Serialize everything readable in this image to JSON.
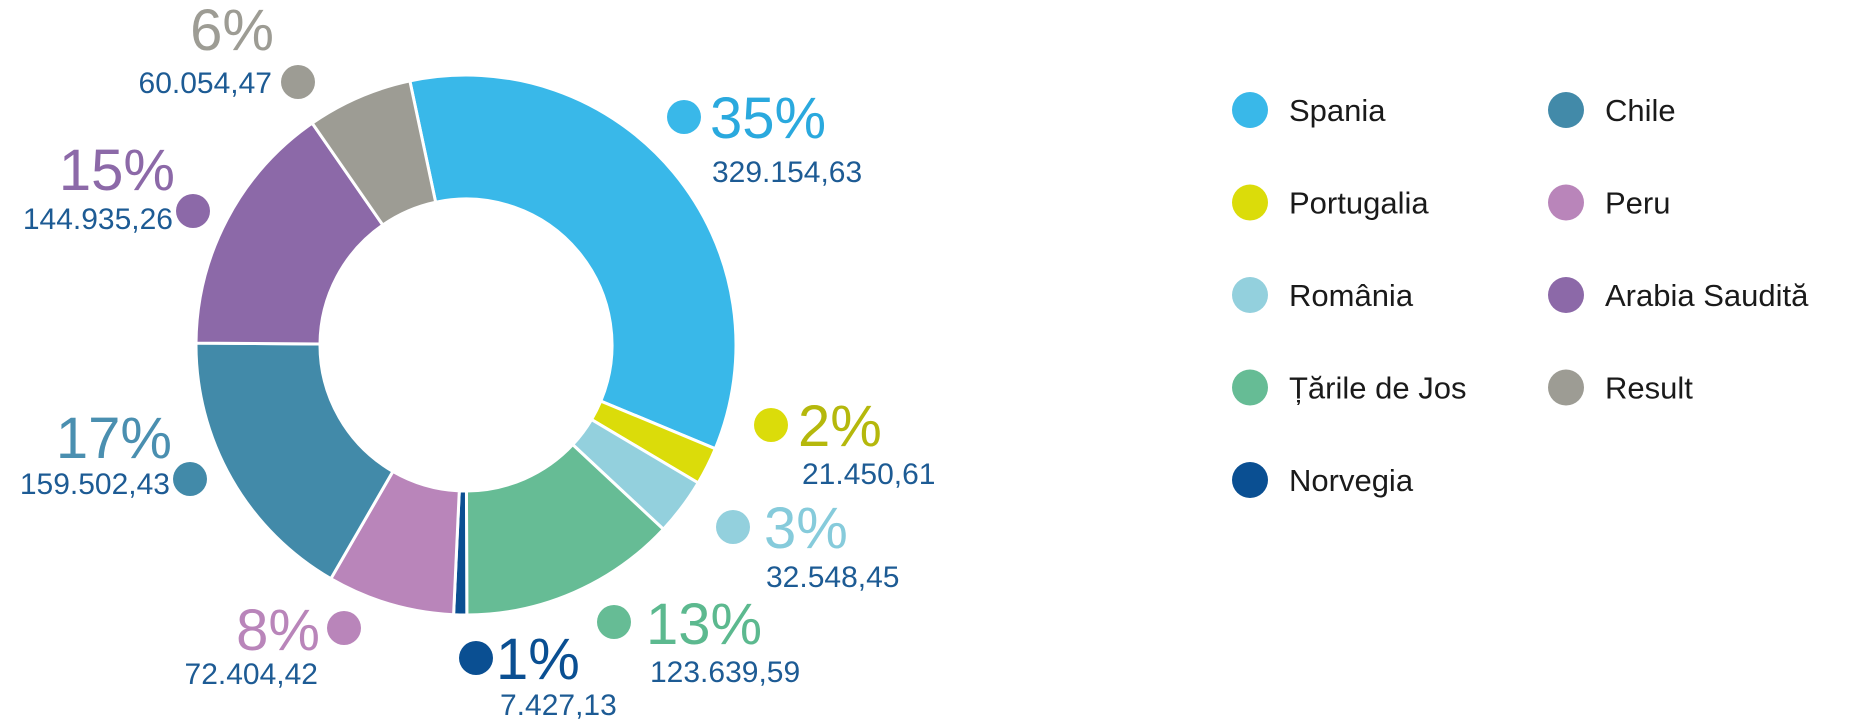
{
  "chart_data": {
    "type": "pie",
    "variant": "donut",
    "title": "",
    "value_color": "#1d5b94",
    "slices": [
      {
        "name": "Spania",
        "percent_label": "35%",
        "value_label": "329.154,63",
        "value": 329154.63,
        "color": "#39b8e9",
        "pct_color": "#2aa9de"
      },
      {
        "name": "Portugalia",
        "percent_label": "2%",
        "value_label": "21.450,61",
        "value": 21450.61,
        "color": "#dbdc0a",
        "pct_color": "#b5b80c"
      },
      {
        "name": "România",
        "percent_label": "3%",
        "value_label": "32.548,45",
        "value": 32548.45,
        "color": "#93d0dd",
        "pct_color": "#86cbdb"
      },
      {
        "name": "Țările de Jos",
        "percent_label": "13%",
        "value_label": "123.639,59",
        "value": 123639.59,
        "color": "#66bc95",
        "pct_color": "#5cb98f"
      },
      {
        "name": "Norvegia",
        "percent_label": "1%",
        "value_label": "7.427,13",
        "value": 7427.13,
        "color": "#0a4f92",
        "pct_color": "#0a4f92"
      },
      {
        "name": "Peru",
        "percent_label": "8%",
        "value_label": "72.404,42",
        "value": 72404.42,
        "color": "#b985ba",
        "pct_color": "#b985ba"
      },
      {
        "name": "Chile",
        "percent_label": "17%",
        "value_label": "159.502,43",
        "value": 159502.43,
        "color": "#428aa9",
        "pct_color": "#4a8fb0"
      },
      {
        "name": "Arabia Saudită",
        "percent_label": "15%",
        "value_label": "144.935,26",
        "value": 144935.26,
        "color": "#8c69a8",
        "pct_color": "#8c69a8"
      },
      {
        "name": "Result",
        "percent_label": "6%",
        "value_label": "60.054,47",
        "value": 60054.47,
        "color": "#9d9c94",
        "pct_color": "#9d9c94"
      }
    ],
    "legend": {
      "placement": "right",
      "columns": [
        [
          "Spania",
          "Portugalia",
          "România",
          "Țările de Jos",
          "Norvegia"
        ],
        [
          "Chile",
          "Peru",
          "Arabia Saudită",
          "Result"
        ]
      ]
    }
  }
}
